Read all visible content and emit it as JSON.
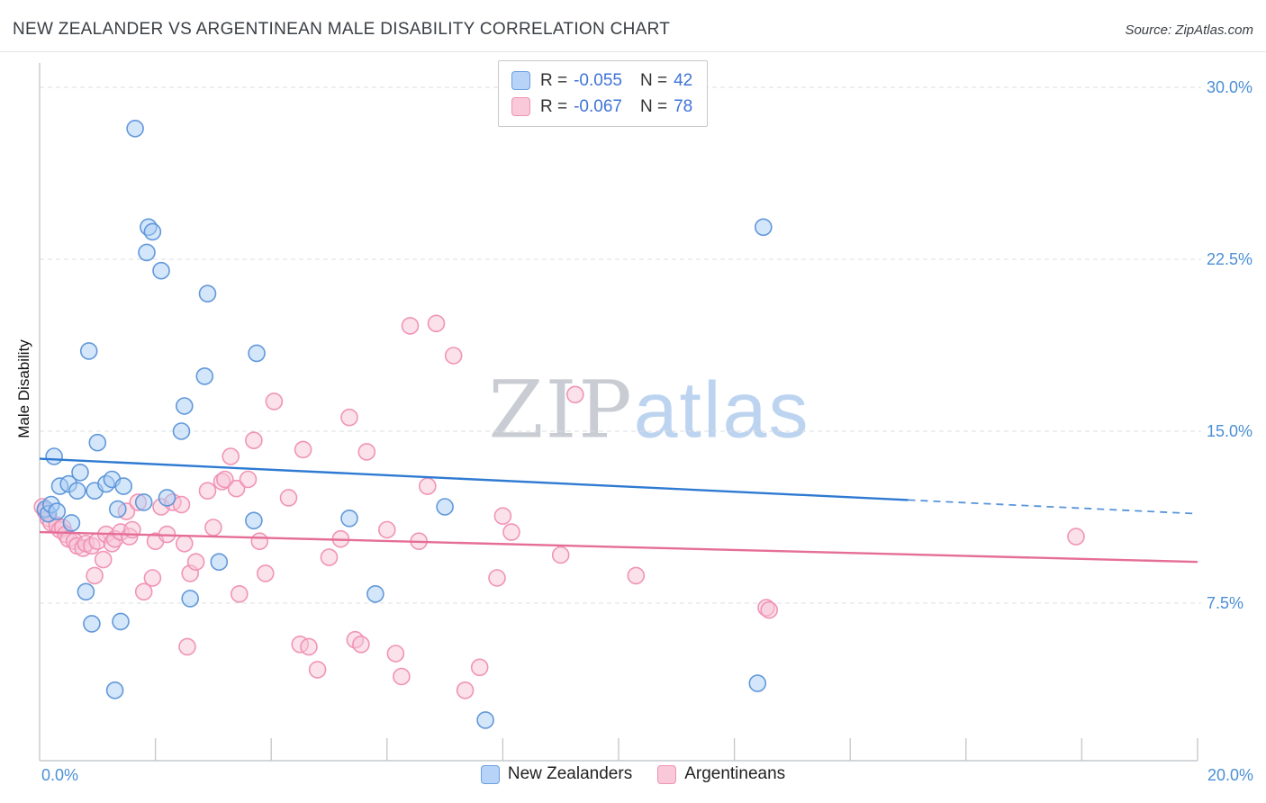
{
  "header": {
    "title": "NEW ZEALANDER VS ARGENTINEAN MALE DISABILITY CORRELATION CHART",
    "source": "Source: ZipAtlas.com"
  },
  "watermark": {
    "part1": "ZIP",
    "part2": "atlas"
  },
  "legend_box": {
    "r_label": "R =",
    "n_label": "N =",
    "series": [
      {
        "r": "-0.055",
        "n": "42"
      },
      {
        "r": "-0.067",
        "n": "78"
      }
    ]
  },
  "bottom_legend": {
    "items": [
      {
        "label": "New Zealanders"
      },
      {
        "label": "Argentineans"
      }
    ]
  },
  "axis": {
    "x_min_label": "0.0%",
    "x_max_label": "20.0%",
    "ylabel": "Male Disability"
  },
  "chart_data": {
    "type": "scatter",
    "title": "NEW ZEALANDER VS ARGENTINEAN MALE DISABILITY CORRELATION CHART",
    "xlabel": "",
    "ylabel": "Male Disability",
    "x_range_percent": [
      0,
      20
    ],
    "y_range_percent": [
      0,
      31
    ],
    "y_gridlines": [
      30,
      22.5,
      15,
      7.5
    ],
    "y_tick_labels": [
      "30.0%",
      "22.5%",
      "15.0%",
      "7.5%"
    ],
    "x_tick_interval": 2,
    "grid": "dashed-horizontal",
    "legend_position": "top-center",
    "series": [
      {
        "name": "New Zealanders",
        "R": -0.055,
        "N": 42,
        "stroke": "#5b94d8",
        "fill": "#a9cdf5",
        "points": [
          [
            0.1,
            11.6
          ],
          [
            0.15,
            11.4
          ],
          [
            0.2,
            11.8
          ],
          [
            0.25,
            13.9
          ],
          [
            0.3,
            11.5
          ],
          [
            0.35,
            12.6
          ],
          [
            0.5,
            12.7
          ],
          [
            0.55,
            11.0
          ],
          [
            0.65,
            12.4
          ],
          [
            0.7,
            13.2
          ],
          [
            0.8,
            8.0
          ],
          [
            0.85,
            18.5
          ],
          [
            0.9,
            6.6
          ],
          [
            0.95,
            12.4
          ],
          [
            1.0,
            14.5
          ],
          [
            1.15,
            12.7
          ],
          [
            1.25,
            12.9
          ],
          [
            1.3,
            3.7
          ],
          [
            1.35,
            11.6
          ],
          [
            1.4,
            6.7
          ],
          [
            1.45,
            12.6
          ],
          [
            1.65,
            28.2
          ],
          [
            1.8,
            11.9
          ],
          [
            1.85,
            22.8
          ],
          [
            1.88,
            23.9
          ],
          [
            1.95,
            23.7
          ],
          [
            2.1,
            22.0
          ],
          [
            2.2,
            12.1
          ],
          [
            2.45,
            15.0
          ],
          [
            2.5,
            16.1
          ],
          [
            2.6,
            7.7
          ],
          [
            2.85,
            17.4
          ],
          [
            2.9,
            21.0
          ],
          [
            3.1,
            9.3
          ],
          [
            3.7,
            11.1
          ],
          [
            3.75,
            18.4
          ],
          [
            5.35,
            11.2
          ],
          [
            5.8,
            7.9
          ],
          [
            7.0,
            11.7
          ],
          [
            7.7,
            2.4
          ],
          [
            12.4,
            4.0
          ],
          [
            12.5,
            23.9
          ]
        ]
      },
      {
        "name": "Argentineans",
        "R": -0.067,
        "N": 78,
        "stroke": "#ef8fb3",
        "fill": "#f7c3d5",
        "points": [
          [
            0.05,
            11.7
          ],
          [
            0.1,
            11.5
          ],
          [
            0.15,
            11.2
          ],
          [
            0.2,
            11.0
          ],
          [
            0.3,
            10.9
          ],
          [
            0.35,
            10.7
          ],
          [
            0.4,
            10.8
          ],
          [
            0.45,
            10.5
          ],
          [
            0.5,
            10.3
          ],
          [
            0.6,
            10.2
          ],
          [
            0.65,
            10.0
          ],
          [
            0.75,
            9.9
          ],
          [
            0.8,
            10.1
          ],
          [
            0.9,
            10.0
          ],
          [
            0.95,
            8.7
          ],
          [
            1.0,
            10.2
          ],
          [
            1.1,
            9.4
          ],
          [
            1.15,
            10.5
          ],
          [
            1.25,
            10.1
          ],
          [
            1.3,
            10.3
          ],
          [
            1.4,
            10.6
          ],
          [
            1.5,
            11.5
          ],
          [
            1.55,
            10.4
          ],
          [
            1.6,
            10.7
          ],
          [
            1.7,
            11.9
          ],
          [
            1.8,
            8.0
          ],
          [
            1.95,
            8.6
          ],
          [
            2.0,
            10.2
          ],
          [
            2.1,
            11.7
          ],
          [
            2.2,
            10.5
          ],
          [
            2.3,
            11.9
          ],
          [
            2.45,
            11.8
          ],
          [
            2.5,
            10.1
          ],
          [
            2.55,
            5.6
          ],
          [
            2.6,
            8.8
          ],
          [
            2.7,
            9.3
          ],
          [
            2.9,
            12.4
          ],
          [
            3.0,
            10.8
          ],
          [
            3.15,
            12.8
          ],
          [
            3.2,
            12.9
          ],
          [
            3.3,
            13.9
          ],
          [
            3.4,
            12.5
          ],
          [
            3.45,
            7.9
          ],
          [
            3.6,
            12.9
          ],
          [
            3.7,
            14.6
          ],
          [
            3.8,
            10.2
          ],
          [
            3.9,
            8.8
          ],
          [
            4.05,
            16.3
          ],
          [
            4.3,
            12.1
          ],
          [
            4.5,
            5.7
          ],
          [
            4.55,
            14.2
          ],
          [
            4.65,
            5.6
          ],
          [
            4.8,
            4.6
          ],
          [
            5.0,
            9.5
          ],
          [
            5.2,
            10.3
          ],
          [
            5.35,
            15.6
          ],
          [
            5.45,
            5.9
          ],
          [
            5.55,
            5.7
          ],
          [
            5.65,
            14.1
          ],
          [
            6.0,
            10.7
          ],
          [
            6.15,
            5.3
          ],
          [
            6.25,
            4.3
          ],
          [
            6.4,
            19.6
          ],
          [
            6.55,
            10.2
          ],
          [
            6.7,
            12.6
          ],
          [
            6.85,
            19.7
          ],
          [
            7.15,
            18.3
          ],
          [
            7.35,
            3.7
          ],
          [
            7.6,
            4.7
          ],
          [
            7.9,
            8.6
          ],
          [
            8.0,
            11.3
          ],
          [
            8.15,
            10.6
          ],
          [
            9.0,
            9.6
          ],
          [
            9.25,
            16.6
          ],
          [
            10.3,
            8.7
          ],
          [
            12.55,
            7.3
          ],
          [
            12.6,
            7.2
          ],
          [
            17.9,
            10.4
          ]
        ]
      }
    ],
    "trend_lines": [
      {
        "series": "New Zealanders",
        "color": "#2e7ad2",
        "solid": [
          [
            0,
            13.8
          ],
          [
            15,
            12.0
          ]
        ],
        "dashed": [
          [
            15,
            12.0
          ],
          [
            20,
            11.4
          ]
        ]
      },
      {
        "series": "Argentineans",
        "color": "#e56e96",
        "solid": [
          [
            0,
            10.6
          ],
          [
            20,
            9.3
          ]
        ]
      }
    ]
  }
}
